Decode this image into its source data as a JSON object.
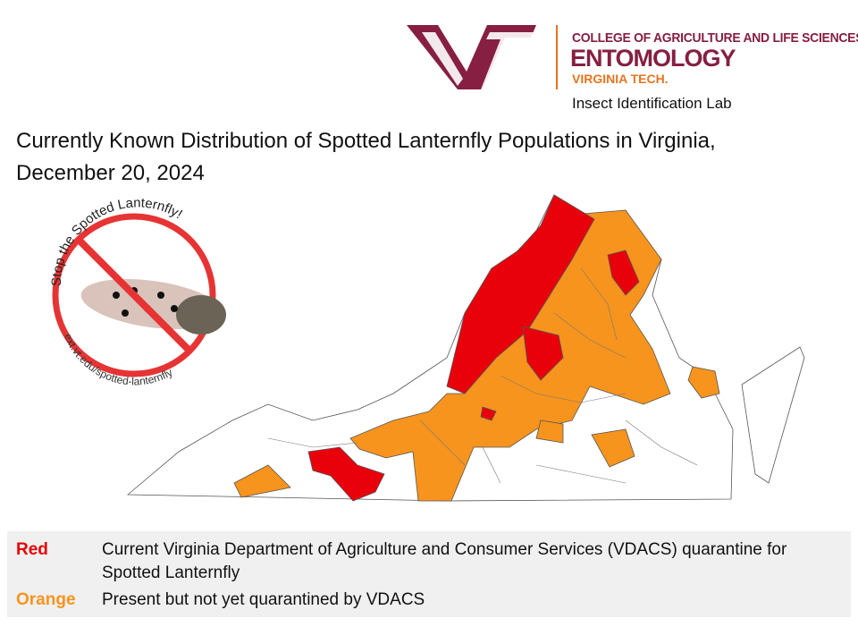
{
  "logo": {
    "college": "COLLEGE OF AGRICULTURE AND LIFE SCIENCES",
    "department": "ENTOMOLOGY",
    "university": "VIRGINIA TECH.",
    "lab": "Insect Identification Lab"
  },
  "title": "Currently Known Distribution of Spotted Lanternfly Populations in Virginia, December 20, 2024",
  "badge": {
    "top": "Stop the Spotted Lanternfly!",
    "bottom": "ext.vt.edu/spotted-lanternfly"
  },
  "legend": [
    {
      "label": "Red",
      "text": "Current Virginia Department of Agriculture and Consumer Services (VDACS) quarantine for Spotted Lanternfly"
    },
    {
      "label": "Orange",
      "text": "Present but not yet quarantined by VDACS"
    }
  ]
}
